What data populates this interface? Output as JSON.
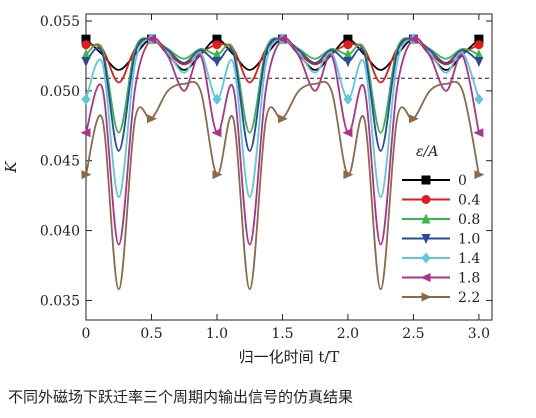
{
  "caption": "不同外磁场下跃迁率三个周期内输出信号的仿真结果",
  "chart_data": {
    "type": "line",
    "xlabel": "归一化时间 t/T",
    "ylabel": "K",
    "xlim": [
      0,
      3.1
    ],
    "ylim": [
      0.0336,
      0.0555
    ],
    "xticks": [
      0,
      0.5,
      1.0,
      1.5,
      2.0,
      2.5,
      3.0
    ],
    "xtick_labels": [
      "0",
      "0.5",
      "1.0",
      "1.5",
      "2.0",
      "2.5",
      "3.0"
    ],
    "yticks": [
      0.035,
      0.04,
      0.045,
      0.05,
      0.055
    ],
    "ytick_labels": [
      "0.035",
      "0.040",
      "0.045",
      "0.050",
      "0.055"
    ],
    "reference_line": 0.0509,
    "grid": false,
    "legend_title": "ε/A",
    "legend_position": "right",
    "series": [
      {
        "name": "0",
        "color": "#000000",
        "marker": "square",
        "x": [
          0,
          0.125,
          0.25,
          0.375,
          0.5,
          0.625,
          0.75,
          0.875,
          1.0,
          1.125,
          1.25,
          1.375,
          1.5,
          1.625,
          1.75,
          1.875,
          2.0,
          2.125,
          2.25,
          2.375,
          2.5,
          2.625,
          2.75,
          2.875,
          3.0
        ],
        "y": [
          0.0537,
          0.0526,
          0.0515,
          0.0526,
          0.0537,
          0.0526,
          0.0515,
          0.0526,
          0.0537,
          0.0526,
          0.0515,
          0.0526,
          0.0537,
          0.0526,
          0.0515,
          0.0526,
          0.0537,
          0.0526,
          0.0515,
          0.0526,
          0.0537,
          0.0526,
          0.0515,
          0.0526,
          0.0537
        ]
      },
      {
        "name": "0.4",
        "color": "#e41a1c",
        "marker": "circle",
        "x": [
          0,
          0.125,
          0.25,
          0.375,
          0.5,
          0.625,
          0.75,
          0.875,
          1.0,
          1.125,
          1.25,
          1.375,
          1.5,
          1.625,
          1.75,
          1.875,
          2.0,
          2.125,
          2.25,
          2.375,
          2.5,
          2.625,
          2.75,
          2.875,
          3.0
        ],
        "y": [
          0.0533,
          0.053,
          0.0506,
          0.053,
          0.0537,
          0.0527,
          0.0519,
          0.0527,
          0.0533,
          0.053,
          0.0506,
          0.053,
          0.0537,
          0.0527,
          0.0519,
          0.0527,
          0.0533,
          0.053,
          0.0506,
          0.053,
          0.0537,
          0.0527,
          0.0519,
          0.0527,
          0.0533
        ]
      },
      {
        "name": "0.8",
        "color": "#3cb44b",
        "marker": "triangle-up",
        "x": [
          0,
          0.125,
          0.25,
          0.375,
          0.5,
          0.625,
          0.75,
          0.875,
          1.0,
          1.125,
          1.25,
          1.375,
          1.5,
          1.625,
          1.75,
          1.875,
          2.0,
          2.125,
          2.25,
          2.375,
          2.5,
          2.625,
          2.75,
          2.875,
          3.0
        ],
        "y": [
          0.0526,
          0.053,
          0.047,
          0.053,
          0.0537,
          0.053,
          0.0523,
          0.053,
          0.0526,
          0.053,
          0.047,
          0.053,
          0.0537,
          0.053,
          0.0523,
          0.053,
          0.0526,
          0.053,
          0.047,
          0.053,
          0.0537,
          0.053,
          0.0523,
          0.053,
          0.0526
        ]
      },
      {
        "name": "1.0",
        "color": "#2c4a9a",
        "marker": "triangle-down",
        "x": [
          0,
          0.125,
          0.25,
          0.375,
          0.5,
          0.625,
          0.75,
          0.875,
          1.0,
          1.125,
          1.25,
          1.375,
          1.5,
          1.625,
          1.75,
          1.875,
          2.0,
          2.125,
          2.25,
          2.375,
          2.5,
          2.625,
          2.75,
          2.875,
          3.0
        ],
        "y": [
          0.0521,
          0.0527,
          0.0457,
          0.0527,
          0.0537,
          0.0529,
          0.052,
          0.0529,
          0.0521,
          0.0527,
          0.0457,
          0.0527,
          0.0537,
          0.0529,
          0.052,
          0.0529,
          0.0521,
          0.0527,
          0.0457,
          0.0527,
          0.0537,
          0.0529,
          0.052,
          0.0529,
          0.0521
        ]
      },
      {
        "name": "1.4",
        "color": "#5bc8dc",
        "marker": "diamond",
        "x": [
          0,
          0.125,
          0.25,
          0.375,
          0.5,
          0.625,
          0.75,
          0.875,
          1.0,
          1.125,
          1.25,
          1.375,
          1.5,
          1.625,
          1.75,
          1.875,
          2.0,
          2.125,
          2.25,
          2.375,
          2.5,
          2.625,
          2.75,
          2.875,
          3.0
        ],
        "y": [
          0.0494,
          0.052,
          0.0424,
          0.052,
          0.0537,
          0.0527,
          0.0513,
          0.0527,
          0.0494,
          0.052,
          0.0424,
          0.052,
          0.0537,
          0.0527,
          0.0513,
          0.0527,
          0.0494,
          0.052,
          0.0424,
          0.052,
          0.0537,
          0.0527,
          0.0513,
          0.0527,
          0.0494
        ]
      },
      {
        "name": "1.8",
        "color": "#b0308c",
        "marker": "triangle-left",
        "x": [
          0,
          0.125,
          0.25,
          0.375,
          0.5,
          0.625,
          0.75,
          0.875,
          1.0,
          1.125,
          1.25,
          1.375,
          1.5,
          1.625,
          1.75,
          1.875,
          2.0,
          2.125,
          2.25,
          2.375,
          2.5,
          2.625,
          2.75,
          2.875,
          3.0
        ],
        "y": [
          0.047,
          0.0502,
          0.039,
          0.0502,
          0.0537,
          0.0525,
          0.05,
          0.0525,
          0.047,
          0.0502,
          0.039,
          0.0502,
          0.0537,
          0.0525,
          0.05,
          0.0525,
          0.047,
          0.0502,
          0.039,
          0.0502,
          0.0537,
          0.0525,
          0.05,
          0.0525,
          0.047
        ]
      },
      {
        "name": "2.2",
        "color": "#8b6a4a",
        "marker": "triangle-right",
        "x": [
          0,
          0.125,
          0.25,
          0.375,
          0.5,
          0.625,
          0.75,
          0.875,
          1.0,
          1.125,
          1.25,
          1.375,
          1.5,
          1.625,
          1.75,
          1.875,
          2.0,
          2.125,
          2.25,
          2.375,
          2.5,
          2.625,
          2.75,
          2.875,
          3.0
        ],
        "y": [
          0.044,
          0.048,
          0.0358,
          0.048,
          0.048,
          0.05,
          0.0505,
          0.05,
          0.044,
          0.048,
          0.0358,
          0.048,
          0.048,
          0.05,
          0.0505,
          0.05,
          0.044,
          0.048,
          0.0358,
          0.048,
          0.048,
          0.05,
          0.0505,
          0.05,
          0.044
        ]
      }
    ]
  }
}
